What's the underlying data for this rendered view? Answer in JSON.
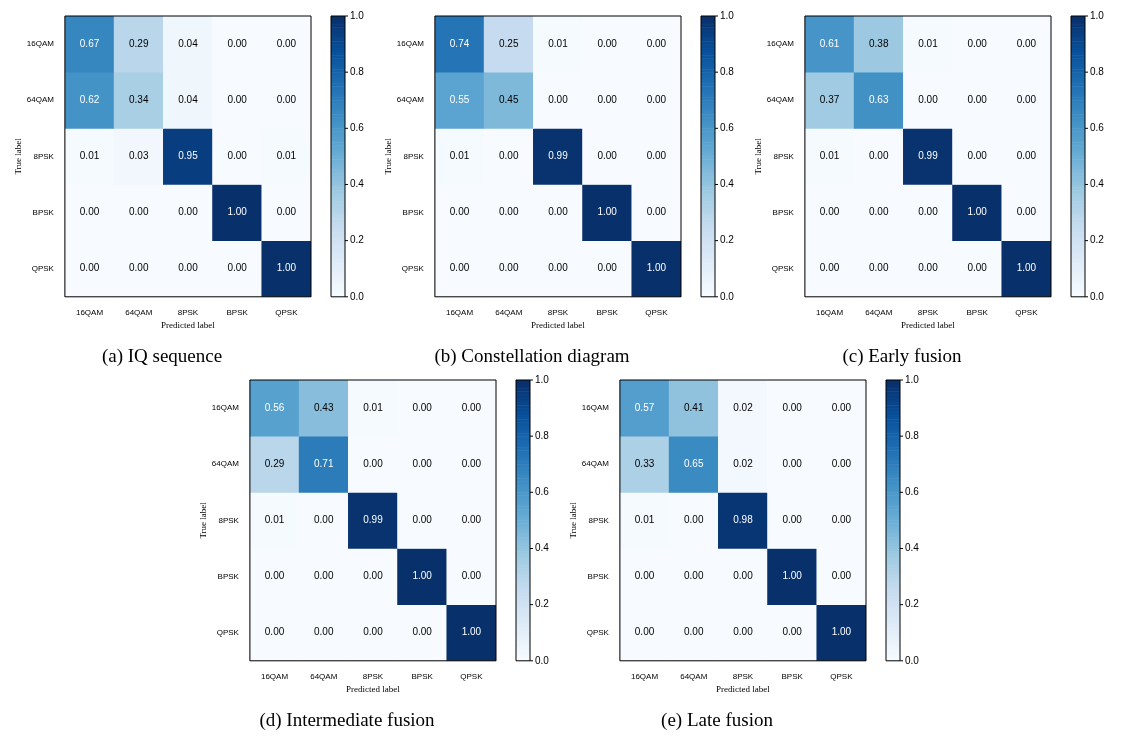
{
  "chart_data": [
    {
      "type": "heatmap",
      "title": "(a) IQ sequence",
      "xlabel": "Predicted label",
      "ylabel": "True label",
      "categories": [
        "16QAM",
        "64QAM",
        "8PSK",
        "BPSK",
        "QPSK"
      ],
      "y_categories": [
        "16QAM",
        "64QAM",
        "8PSK",
        "BPSK",
        "QPSK"
      ],
      "cells": [
        [
          0.67,
          0.29,
          0.04,
          0,
          0
        ],
        [
          0.62,
          0.34,
          0.04,
          0,
          0
        ],
        [
          0.01,
          0.03,
          0.95,
          0,
          0.01
        ],
        [
          0,
          0,
          0,
          1,
          0
        ],
        [
          0,
          0,
          0,
          0,
          1
        ]
      ],
      "cell_labels": [
        [
          "0.67",
          "0.29",
          "0.04",
          "0.00",
          "0.00"
        ],
        [
          "0.62",
          "0.34",
          "0.04",
          "0.00",
          "0.00"
        ],
        [
          "0.01",
          "0.03",
          "0.95",
          "0.00",
          "0.01"
        ],
        [
          "0.00",
          "0.00",
          "0.00",
          "1.00",
          "0.00"
        ],
        [
          "0.00",
          "0.00",
          "0.00",
          "0.00",
          "1.00"
        ]
      ],
      "clim": [
        0,
        1
      ],
      "cticks": [
        {
          "value": 0,
          "label": "0.0"
        },
        {
          "value": 0.2,
          "label": "0.2"
        },
        {
          "value": 0.4,
          "label": "0.4"
        },
        {
          "value": 0.6,
          "label": "0.6"
        },
        {
          "value": 0.8,
          "label": "0.8"
        },
        {
          "value": 1,
          "label": "1.0"
        }
      ],
      "data_labels": true
    },
    {
      "type": "heatmap",
      "title": "(b) Constellation diagram",
      "xlabel": "Predicted label",
      "ylabel": "True label",
      "categories": [
        "16QAM",
        "64QAM",
        "8PSK",
        "BPSK",
        "QPSK"
      ],
      "y_categories": [
        "16QAM",
        "64QAM",
        "8PSK",
        "BPSK",
        "QPSK"
      ],
      "cells": [
        [
          0.74,
          0.25,
          0.01,
          0,
          0
        ],
        [
          0.55,
          0.45,
          0,
          0,
          0
        ],
        [
          0.01,
          0,
          0.99,
          0,
          0
        ],
        [
          0,
          0,
          0,
          1,
          0
        ],
        [
          0,
          0,
          0,
          0,
          1
        ]
      ],
      "cell_labels": [
        [
          "0.74",
          "0.25",
          "0.01",
          "0.00",
          "0.00"
        ],
        [
          "0.55",
          "0.45",
          "0.00",
          "0.00",
          "0.00"
        ],
        [
          "0.01",
          "0.00",
          "0.99",
          "0.00",
          "0.00"
        ],
        [
          "0.00",
          "0.00",
          "0.00",
          "1.00",
          "0.00"
        ],
        [
          "0.00",
          "0.00",
          "0.00",
          "0.00",
          "1.00"
        ]
      ],
      "clim": [
        0,
        1
      ],
      "cticks": [
        {
          "value": 0,
          "label": "0.0"
        },
        {
          "value": 0.2,
          "label": "0.2"
        },
        {
          "value": 0.4,
          "label": "0.4"
        },
        {
          "value": 0.6,
          "label": "0.6"
        },
        {
          "value": 0.8,
          "label": "0.8"
        },
        {
          "value": 1,
          "label": "1.0"
        }
      ],
      "data_labels": true
    },
    {
      "type": "heatmap",
      "title": "(c) Early fusion",
      "xlabel": "Predicted label",
      "ylabel": "True label",
      "categories": [
        "16QAM",
        "64QAM",
        "8PSK",
        "BPSK",
        "QPSK"
      ],
      "y_categories": [
        "16QAM",
        "64QAM",
        "8PSK",
        "BPSK",
        "QPSK"
      ],
      "cells": [
        [
          0.61,
          0.38,
          0.01,
          0,
          0
        ],
        [
          0.37,
          0.63,
          0,
          0,
          0
        ],
        [
          0.01,
          0,
          0.99,
          0,
          0
        ],
        [
          0,
          0,
          0,
          1,
          0
        ],
        [
          0,
          0,
          0,
          0,
          1
        ]
      ],
      "cell_labels": [
        [
          "0.61",
          "0.38",
          "0.01",
          "0.00",
          "0.00"
        ],
        [
          "0.37",
          "0.63",
          "0.00",
          "0.00",
          "0.00"
        ],
        [
          "0.01",
          "0.00",
          "0.99",
          "0.00",
          "0.00"
        ],
        [
          "0.00",
          "0.00",
          "0.00",
          "1.00",
          "0.00"
        ],
        [
          "0.00",
          "0.00",
          "0.00",
          "0.00",
          "1.00"
        ]
      ],
      "clim": [
        0,
        1
      ],
      "cticks": [
        {
          "value": 0,
          "label": "0.0"
        },
        {
          "value": 0.2,
          "label": "0.2"
        },
        {
          "value": 0.4,
          "label": "0.4"
        },
        {
          "value": 0.6,
          "label": "0.6"
        },
        {
          "value": 0.8,
          "label": "0.8"
        },
        {
          "value": 1,
          "label": "1.0"
        }
      ],
      "data_labels": true
    },
    {
      "type": "heatmap",
      "title": "(d) Intermediate fusion",
      "xlabel": "Predicted label",
      "ylabel": "True label",
      "categories": [
        "16QAM",
        "64QAM",
        "8PSK",
        "BPSK",
        "QPSK"
      ],
      "y_categories": [
        "16QAM",
        "64QAM",
        "8PSK",
        "BPSK",
        "QPSK"
      ],
      "cells": [
        [
          0.56,
          0.43,
          0.01,
          0,
          0
        ],
        [
          0.29,
          0.71,
          0,
          0,
          0
        ],
        [
          0.01,
          0,
          0.99,
          0,
          0
        ],
        [
          0,
          0,
          0,
          1,
          0
        ],
        [
          0,
          0,
          0,
          0,
          1
        ]
      ],
      "cell_labels": [
        [
          "0.56",
          "0.43",
          "0.01",
          "0.00",
          "0.00"
        ],
        [
          "0.29",
          "0.71",
          "0.00",
          "0.00",
          "0.00"
        ],
        [
          "0.01",
          "0.00",
          "0.99",
          "0.00",
          "0.00"
        ],
        [
          "0.00",
          "0.00",
          "0.00",
          "1.00",
          "0.00"
        ],
        [
          "0.00",
          "0.00",
          "0.00",
          "0.00",
          "1.00"
        ]
      ],
      "clim": [
        0,
        1
      ],
      "cticks": [
        {
          "value": 0,
          "label": "0.0"
        },
        {
          "value": 0.2,
          "label": "0.2"
        },
        {
          "value": 0.4,
          "label": "0.4"
        },
        {
          "value": 0.6,
          "label": "0.6"
        },
        {
          "value": 0.8,
          "label": "0.8"
        },
        {
          "value": 1,
          "label": "1.0"
        }
      ],
      "data_labels": true
    },
    {
      "type": "heatmap",
      "title": "(e) Late fusion",
      "xlabel": "Predicted label",
      "ylabel": "True label",
      "categories": [
        "16QAM",
        "64QAM",
        "8PSK",
        "BPSK",
        "QPSK"
      ],
      "y_categories": [
        "16QAM",
        "64QAM",
        "8PSK",
        "BPSK",
        "QPSK"
      ],
      "cells": [
        [
          0.57,
          0.41,
          0.02,
          0,
          0
        ],
        [
          0.33,
          0.65,
          0.02,
          0,
          0
        ],
        [
          0.01,
          0,
          0.98,
          0,
          0
        ],
        [
          0,
          0,
          0,
          1,
          0
        ],
        [
          0,
          0,
          0,
          0,
          1
        ]
      ],
      "cell_labels": [
        [
          "0.57",
          "0.41",
          "0.02",
          "0.00",
          "0.00"
        ],
        [
          "0.33",
          "0.65",
          "0.02",
          "0.00",
          "0.00"
        ],
        [
          "0.01",
          "0.00",
          "0.98",
          "0.00",
          "0.00"
        ],
        [
          "0.00",
          "0.00",
          "0.00",
          "1.00",
          "0.00"
        ],
        [
          "0.00",
          "0.00",
          "0.00",
          "0.00",
          "1.00"
        ]
      ],
      "clim": [
        0,
        1
      ],
      "cticks": [
        {
          "value": 0,
          "label": "0.0"
        },
        {
          "value": 0.2,
          "label": "0.2"
        },
        {
          "value": 0.4,
          "label": "0.4"
        },
        {
          "value": 0.6,
          "label": "0.6"
        },
        {
          "value": 0.8,
          "label": "0.8"
        },
        {
          "value": 1,
          "label": "1.0"
        }
      ],
      "data_labels": true
    }
  ]
}
